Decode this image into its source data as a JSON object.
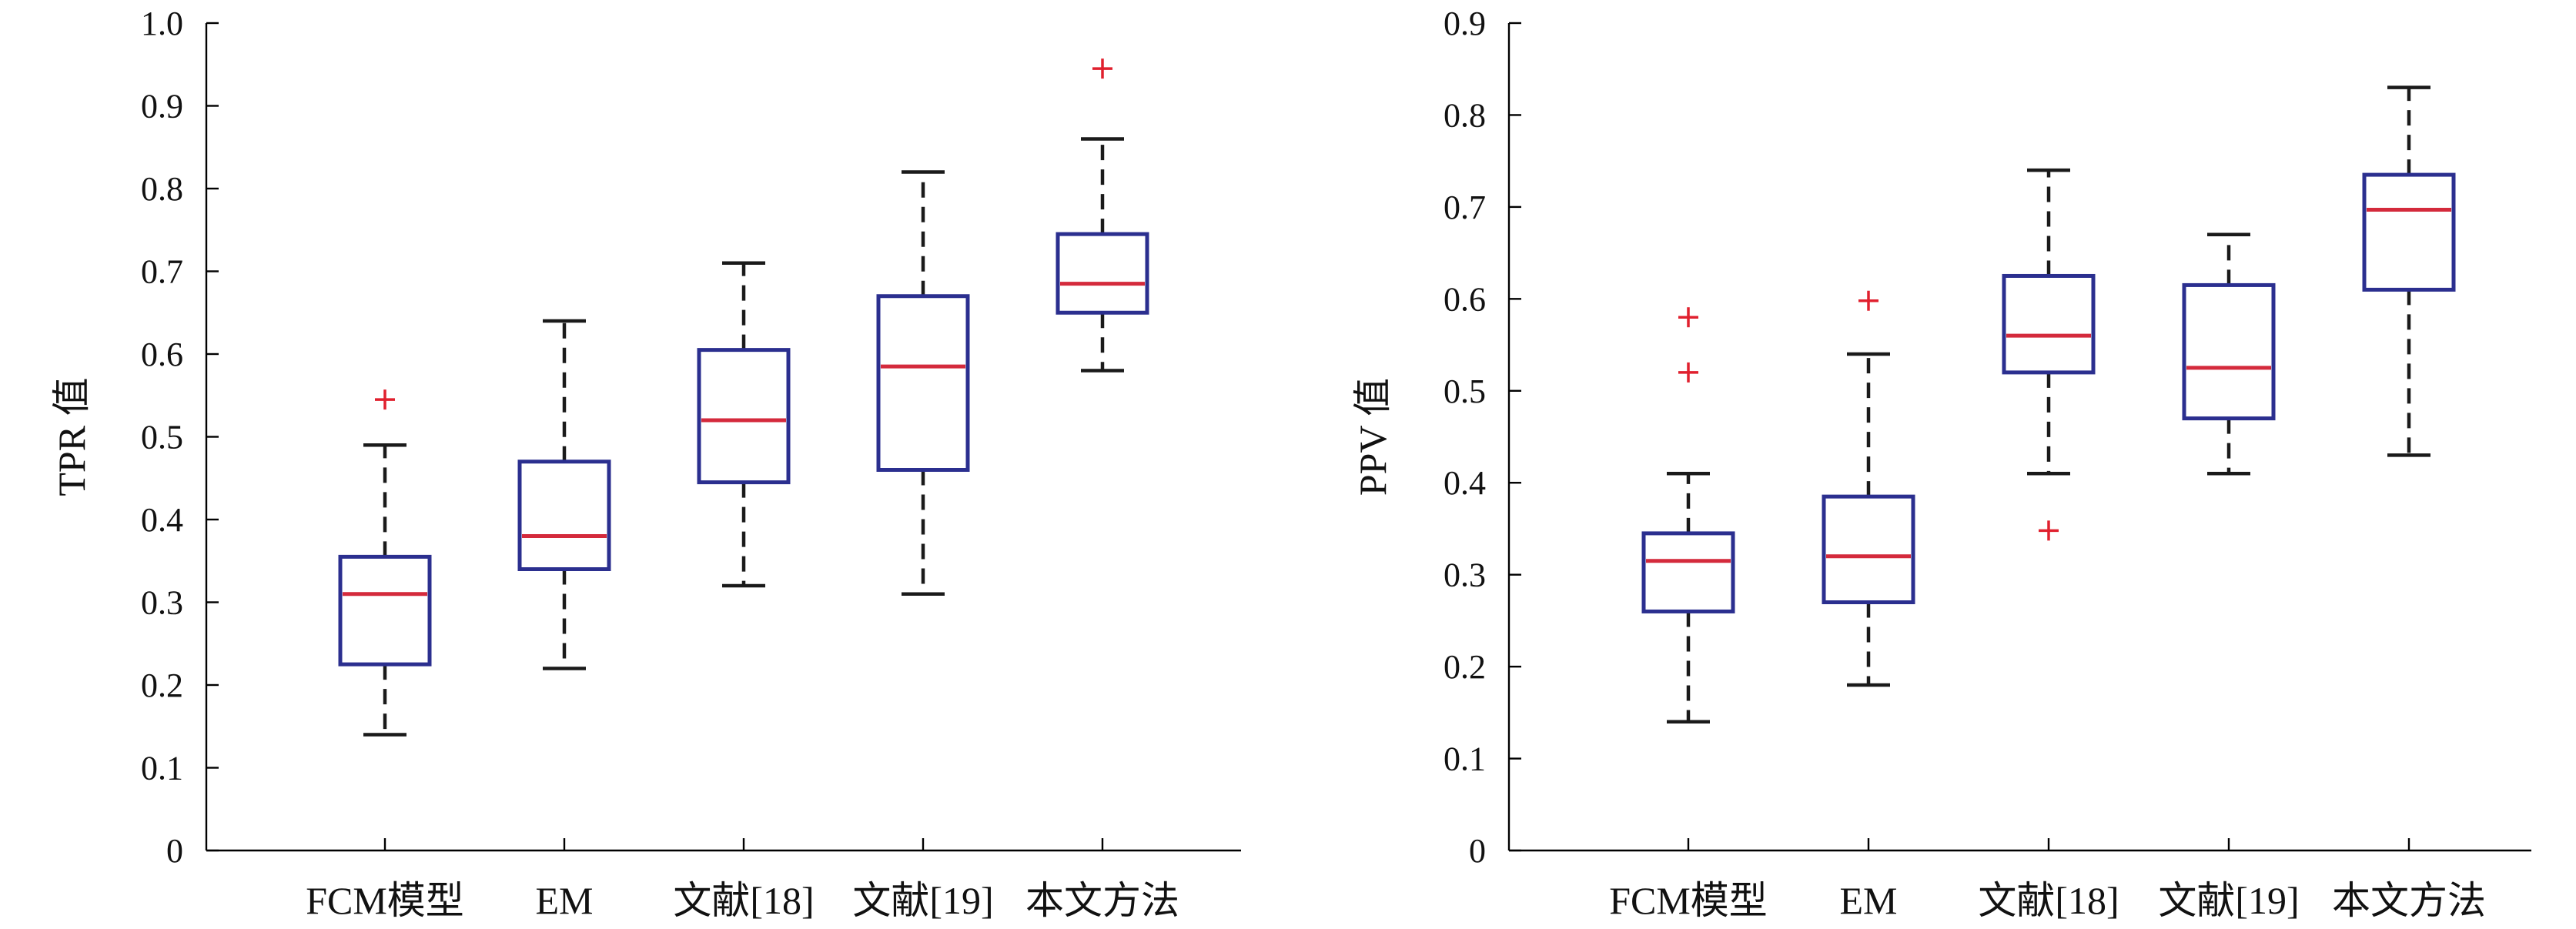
{
  "colors": {
    "box": "#2b2f8f",
    "median": "#d42a3c",
    "outlier": "#e0202e",
    "whisker": "#1a1a1a"
  },
  "chart_data": [
    {
      "type": "boxplot",
      "ylabel": "TPR 值",
      "ylim": [
        0,
        1.0
      ],
      "yticks": [
        "0",
        "0.1",
        "0.2",
        "0.3",
        "0.4",
        "0.5",
        "0.6",
        "0.7",
        "0.8",
        "0.9",
        "1.0"
      ],
      "ytick_values": [
        0,
        0.1,
        0.2,
        0.3,
        0.4,
        0.5,
        0.6,
        0.7,
        0.8,
        0.9,
        1.0
      ],
      "categories": [
        "FCM模型",
        "EM",
        "文献[18]",
        "文献[19]",
        "本文方法"
      ],
      "boxes": [
        {
          "min": 0.14,
          "q1": 0.225,
          "median": 0.31,
          "q3": 0.355,
          "max": 0.49,
          "outliers": [
            0.545
          ]
        },
        {
          "min": 0.22,
          "q1": 0.34,
          "median": 0.38,
          "q3": 0.47,
          "max": 0.64,
          "outliers": []
        },
        {
          "min": 0.32,
          "q1": 0.445,
          "median": 0.52,
          "q3": 0.605,
          "max": 0.71,
          "outliers": []
        },
        {
          "min": 0.31,
          "q1": 0.46,
          "median": 0.585,
          "q3": 0.67,
          "max": 0.82,
          "outliers": []
        },
        {
          "min": 0.58,
          "q1": 0.65,
          "median": 0.685,
          "q3": 0.745,
          "max": 0.86,
          "outliers": [
            0.945
          ]
        }
      ]
    },
    {
      "type": "boxplot",
      "ylabel": "PPV 值",
      "ylim": [
        0,
        0.9
      ],
      "yticks": [
        "0",
        "0.1",
        "0.2",
        "0.3",
        "0.4",
        "0.5",
        "0.6",
        "0.7",
        "0.8",
        "0.9"
      ],
      "ytick_values": [
        0,
        0.1,
        0.2,
        0.3,
        0.4,
        0.5,
        0.6,
        0.7,
        0.8,
        0.9
      ],
      "categories": [
        "FCM模型",
        "EM",
        "文献[18]",
        "文献[19]",
        "本文方法"
      ],
      "boxes": [
        {
          "min": 0.14,
          "q1": 0.26,
          "median": 0.315,
          "q3": 0.345,
          "max": 0.41,
          "outliers": [
            0.52,
            0.58
          ]
        },
        {
          "min": 0.18,
          "q1": 0.27,
          "median": 0.32,
          "q3": 0.385,
          "max": 0.54,
          "outliers": [
            0.598
          ]
        },
        {
          "min": 0.41,
          "q1": 0.52,
          "median": 0.56,
          "q3": 0.625,
          "max": 0.74,
          "outliers": [
            0.348
          ]
        },
        {
          "min": 0.41,
          "q1": 0.47,
          "median": 0.525,
          "q3": 0.615,
          "max": 0.67,
          "outliers": []
        },
        {
          "min": 0.43,
          "q1": 0.61,
          "median": 0.697,
          "q3": 0.735,
          "max": 0.83,
          "outliers": []
        }
      ]
    }
  ]
}
